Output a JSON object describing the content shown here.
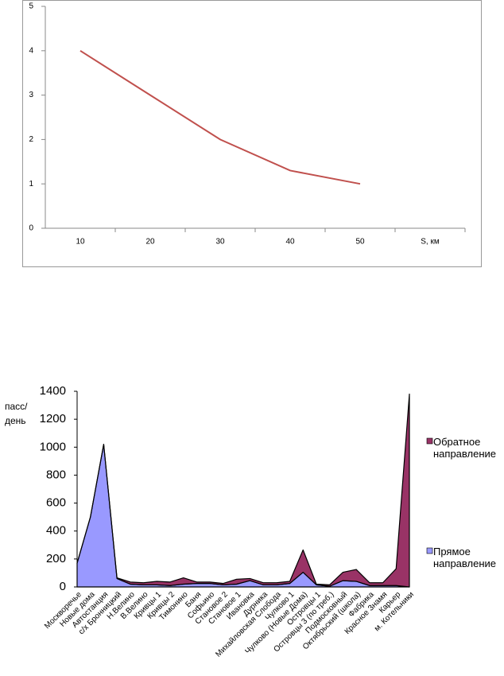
{
  "chart_data": [
    {
      "type": "line",
      "categories": [
        "10",
        "20",
        "30",
        "40",
        "50",
        "S, км"
      ],
      "series": [
        {
          "color": "#c0504d",
          "values": [
            4,
            3,
            2,
            1.3,
            1,
            null
          ]
        }
      ],
      "ylim": [
        0,
        5
      ],
      "yticks": [
        0,
        1,
        2,
        3,
        4,
        5
      ]
    },
    {
      "type": "area",
      "stacked": true,
      "y_label": "пасс/ день",
      "categories": [
        "Москворечье",
        "Новые дома",
        "Автостанция",
        "с/х Бронницкий",
        "Н.Велино",
        "В.Велино",
        "Кривцы 1",
        "Кривцы 2",
        "Тимонино",
        "Баня",
        "Софьино",
        "Становое 2",
        "Становое 1",
        "Ивановка",
        "Дурника",
        "Михайловская Слобода",
        "Чулково 1",
        "Чулково (Новые Дома)",
        "Островцы 1",
        "Островцы 3 (по треб.)",
        "Подмосковный",
        "Октябрьский (школа)",
        "Фабрика",
        "Красное Знамя",
        "Карьер",
        "м. Котельники"
      ],
      "series": [
        {
          "name": "Прямое направление",
          "color": "#9999ff",
          "values": [
            170,
            500,
            1020,
            60,
            20,
            15,
            15,
            10,
            20,
            25,
            25,
            15,
            20,
            45,
            15,
            15,
            25,
            105,
            15,
            5,
            45,
            40,
            10,
            10,
            10,
            0
          ]
        },
        {
          "name": "Обратное направление",
          "color": "#993366",
          "values": [
            0,
            0,
            0,
            5,
            15,
            15,
            25,
            25,
            45,
            10,
            10,
            10,
            35,
            15,
            15,
            15,
            15,
            160,
            5,
            10,
            60,
            85,
            20,
            20,
            120,
            1380
          ]
        }
      ],
      "ylim": [
        0,
        1400
      ],
      "yticks": [
        0,
        200,
        400,
        600,
        800,
        1000,
        1200,
        1400
      ]
    }
  ]
}
